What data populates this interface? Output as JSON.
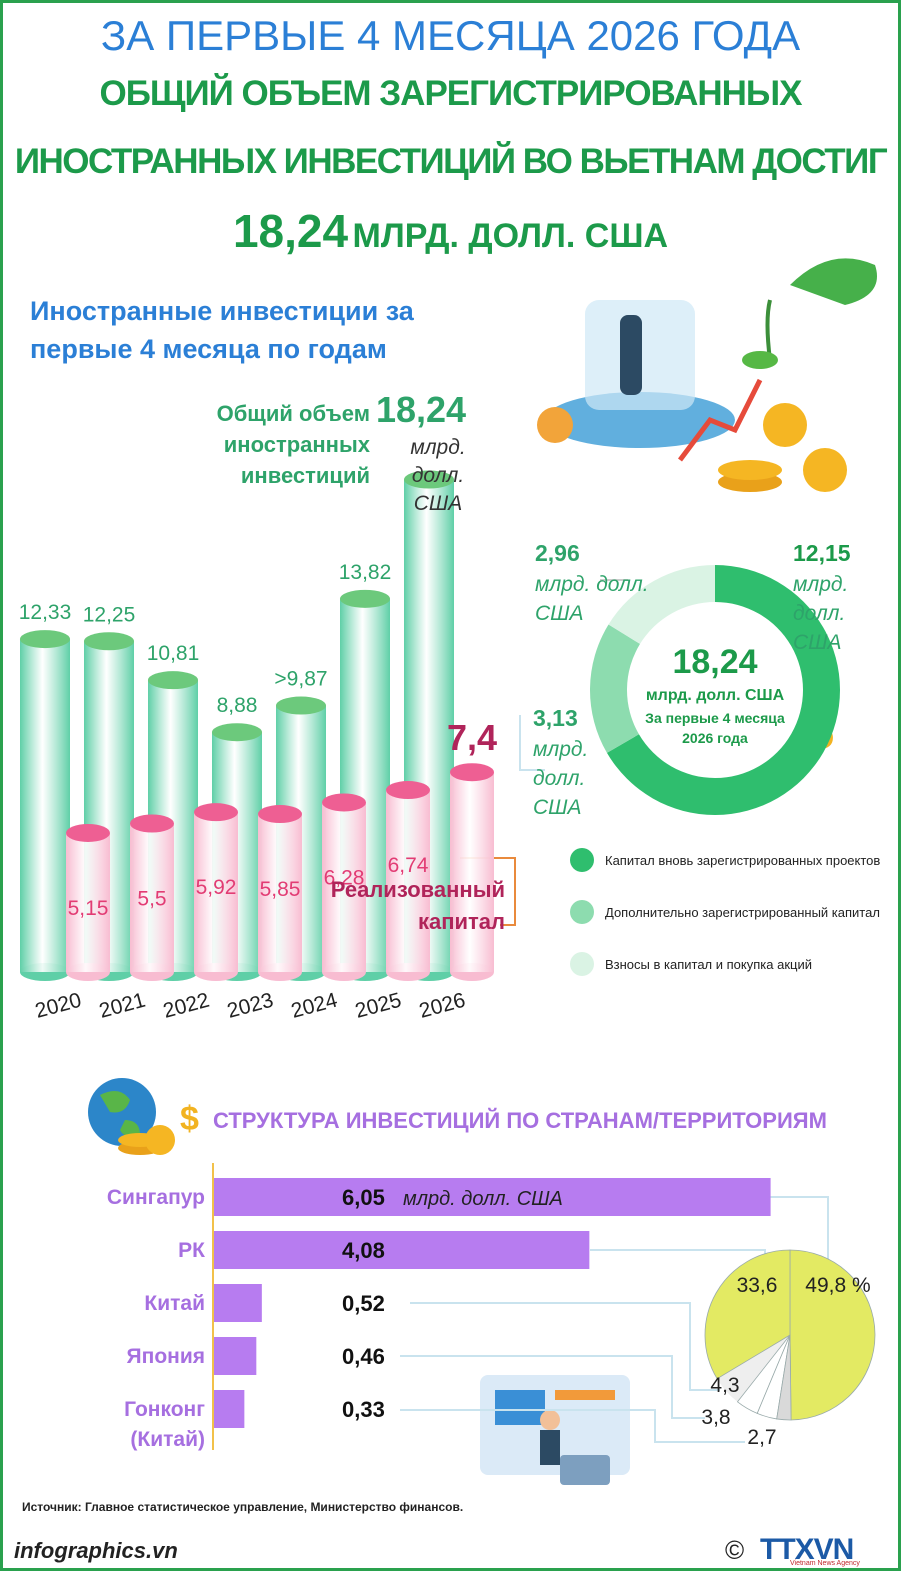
{
  "header": {
    "line1": "ЗА ПЕРВЫЕ 4 МЕСЯЦА 2026 ГОДА",
    "line2": "ОБЩИЙ ОБЪЕМ ЗАРЕГИСТРИРОВАННЫХ",
    "line3": "ИНОСТРАННЫХ ИНВЕСТИЦИЙ ВО ВЬЕТНАМ ДОСТИГ",
    "total": "18,24",
    "unit": "МЛРД. ДОЛЛ. США"
  },
  "chart_data": [
    {
      "type": "cylinder",
      "title": "Иностранные инвестиции за первые 4 месяца по годам",
      "unit": "млрд. долл. США",
      "categories": [
        "2020",
        "2021",
        "2022",
        "2023",
        "2024",
        "2025",
        "2026"
      ],
      "series": [
        {
          "name": "Общий объем иностранных инвестиций",
          "color": "#5fcfa7",
          "cap_color": "#6cc97c",
          "values": [
            12.33,
            12.25,
            10.81,
            8.88,
            9.87,
            13.82,
            18.24
          ],
          "value_labels": [
            "12,33",
            "12,25",
            "10,81",
            "8,88",
            ">9,87",
            "13,82",
            "18,24"
          ]
        },
        {
          "name": "Реализованный капитал",
          "color": "#f8bcd1",
          "cap_color": "#ee5f93",
          "values": [
            5.15,
            5.5,
            5.92,
            5.85,
            6.28,
            6.74,
            7.4
          ],
          "value_labels": [
            "5,15",
            "5,5",
            "5,92",
            "5,85",
            "6,28",
            "6,74",
            "7,4"
          ]
        }
      ]
    },
    {
      "type": "donut",
      "center_label": "18,24",
      "center_unit": "млрд. долл. США",
      "center_note": "За первые 4 месяца 2026 года",
      "unit": "млрд. долл. США",
      "categories": [
        "Капитал вновь зарегистрированных проектов",
        "Дополнительно зарегистрированный капитал",
        "Взносы в капитал и покупка акций"
      ],
      "values": [
        12.15,
        3.13,
        2.96
      ],
      "value_labels": [
        "12,15",
        "3,13",
        "2,96"
      ],
      "colors": [
        "#2fbe6e",
        "#8ddcaf",
        "#daf3e4"
      ]
    },
    {
      "type": "hbar",
      "title": "СТРУКТУРА ИНВЕСТИЦИЙ ПО СТРАНАМ/ТЕРРИТОРИЯМ",
      "unit": "млрд. долл. США",
      "categories": [
        "Сингапур",
        "РК",
        "Китай",
        "Япония",
        "Гонконг (Китай)"
      ],
      "values": [
        6.05,
        4.08,
        0.52,
        0.46,
        0.33
      ],
      "value_labels": [
        "6,05",
        "4,08",
        "0,52",
        "0,46",
        "0,33"
      ],
      "color": "#b77cf0"
    },
    {
      "type": "pie",
      "values": [
        49.8,
        33.6,
        4.3,
        3.8,
        2.7
      ],
      "value_labels": [
        "49,8 %",
        "33,6",
        "4,3",
        "3,8",
        "2,7"
      ],
      "colors": [
        "#e3ea63",
        "#e3ea63",
        "#ffffff",
        "#ffffff",
        "#d9d9d9"
      ]
    }
  ],
  "footer": {
    "source": "Источник: Главное статистическое управление, Министерство финансов.",
    "site": "infographics.vn",
    "copyright": "©",
    "agency": "TTXVN",
    "agency_sub": "Vietnam News Agency"
  }
}
